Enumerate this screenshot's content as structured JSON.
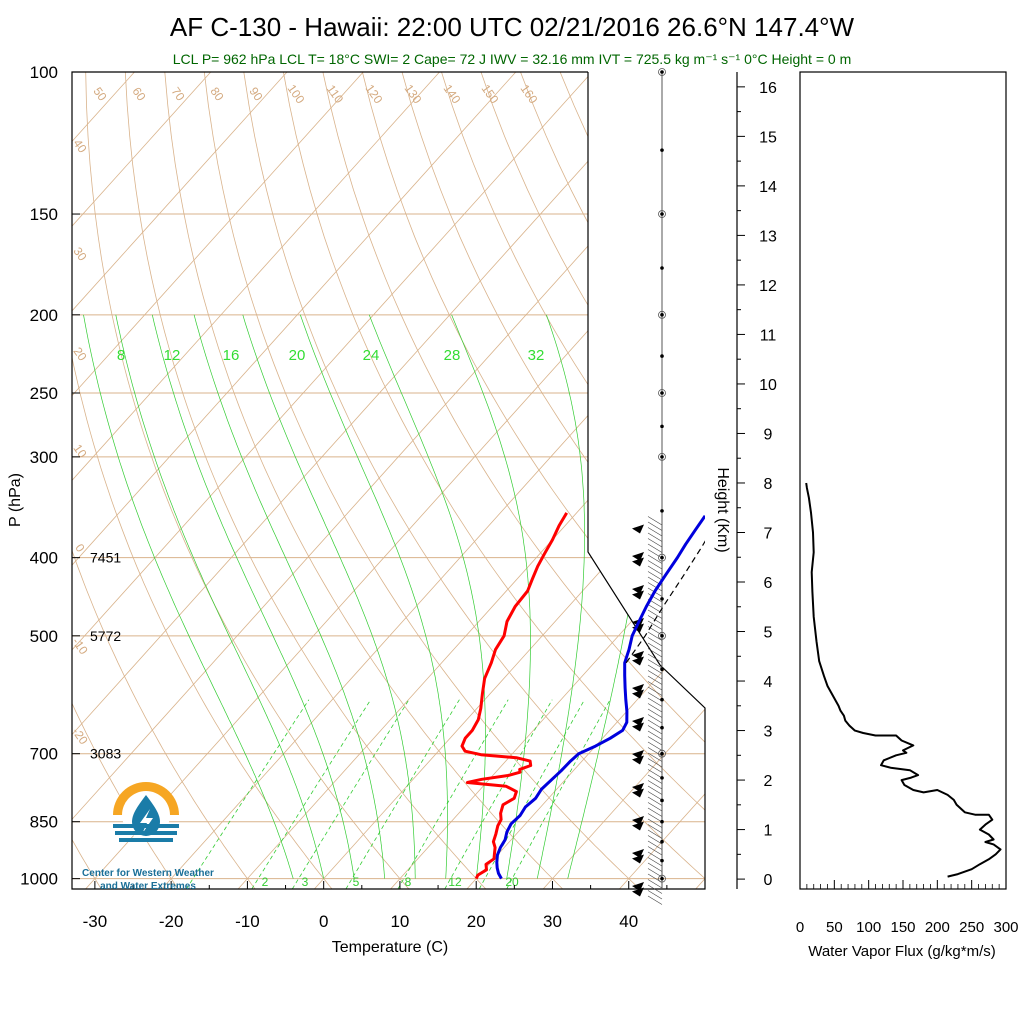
{
  "header": {
    "title": "AF C-130 - Hawaii: 22:00 UTC 02/21/2016  26.6°N 147.4°W",
    "subtitle": "LCL P= 962 hPa  LCL T= 18°C  SWI= 2  Cape= 72 J  IWV = 32.16 mm  IVT = 725.5 kg m⁻¹ s⁻¹  0°C Height = 0 m"
  },
  "colors": {
    "temperature": "#ff0000",
    "dewpoint": "#0000dd",
    "parcel": "#000000",
    "isotherm": "#d9b38c",
    "dry_adiabat": "#d9b38c",
    "moist_adiabat": "#33cc33",
    "mixing_ratio": "#33cc33",
    "subtitle_text": "#006600",
    "background": "#ffffff"
  },
  "logo": {
    "line1": "Center for Western Weather",
    "line2": "and Water Extremes",
    "colors": {
      "sun": "#f6a623",
      "water": "#1a7ca8"
    }
  },
  "chart_data": [
    {
      "type": "line",
      "name": "skew-t",
      "xlabel": "Temperature (C)",
      "ylabel": "P (hPa)",
      "y_scale": "log",
      "xlim": [
        -33,
        50
      ],
      "ylim": [
        1030,
        100
      ],
      "xticks": [
        -30,
        -20,
        -10,
        0,
        10,
        20,
        30,
        40
      ],
      "yticks": [
        100,
        150,
        200,
        250,
        300,
        400,
        500,
        700,
        850,
        1000
      ],
      "height_labels": [
        {
          "p": 400,
          "text": "7451"
        },
        {
          "p": 500,
          "text": "5772"
        },
        {
          "p": 700,
          "text": "3083"
        }
      ],
      "mixing_ratio_labels": [
        "2",
        "3",
        "5",
        "8",
        "12",
        "20"
      ],
      "moist_adiabat_labels": [
        "8",
        "12",
        "16",
        "20",
        "24",
        "28",
        "32"
      ],
      "isotherm_labels": [
        "50",
        "60",
        "70",
        "80",
        "90",
        "100",
        "110",
        "120",
        "130",
        "140",
        "150",
        "160"
      ],
      "dry_adiabat_labels_left": [
        "40",
        "30",
        "20",
        "10",
        "0",
        "-10",
        "-20"
      ],
      "dry_adiabat_labels_right": [
        "30",
        "20",
        "10",
        "0",
        "-10",
        "-20",
        "-30"
      ],
      "grid": true,
      "series": [
        {
          "key": "temperature",
          "points": [
            [
              1000,
              20
            ],
            [
              990,
              19.8
            ],
            [
              975,
              20.3
            ],
            [
              960,
              19.6
            ],
            [
              945,
              20.0
            ],
            [
              930,
              19.4
            ],
            [
              915,
              18.8
            ],
            [
              900,
              17.9
            ],
            [
              880,
              17.3
            ],
            [
              860,
              16.6
            ],
            [
              845,
              16.3
            ],
            [
              830,
              15.5
            ],
            [
              810,
              14.8
            ],
            [
              795,
              15.5
            ],
            [
              780,
              15.0
            ],
            [
              768,
              13.0
            ],
            [
              760,
              7.5
            ],
            [
              753,
              9.0
            ],
            [
              745,
              12.0
            ],
            [
              738,
              13.2
            ],
            [
              732,
              12.8
            ],
            [
              724,
              13.8
            ],
            [
              715,
              13.2
            ],
            [
              708,
              11.0
            ],
            [
              702,
              6.0
            ],
            [
              695,
              3.5
            ],
            [
              685,
              2.5
            ],
            [
              670,
              2.0
            ],
            [
              655,
              2.0
            ],
            [
              635,
              1.5
            ],
            [
              615,
              0.5
            ],
            [
              590,
              -1.0
            ],
            [
              565,
              -2.5
            ],
            [
              540,
              -3.5
            ],
            [
              520,
              -4.5
            ],
            [
              500,
              -5.0
            ],
            [
              480,
              -6.3
            ],
            [
              460,
              -7.0
            ],
            [
              440,
              -7.2
            ],
            [
              425,
              -8.0
            ],
            [
              410,
              -8.8
            ],
            [
              395,
              -9.4
            ],
            [
              380,
              -10.0
            ],
            [
              365,
              -10.8
            ],
            [
              352,
              -11.3
            ]
          ]
        },
        {
          "key": "dewpoint",
          "points": [
            [
              1000,
              23.3
            ],
            [
              985,
              22.3
            ],
            [
              970,
              21.5
            ],
            [
              955,
              20.8
            ],
            [
              935,
              20.0
            ],
            [
              915,
              19.5
            ],
            [
              895,
              19.2
            ],
            [
              875,
              18.5
            ],
            [
              855,
              18.1
            ],
            [
              835,
              18.3
            ],
            [
              815,
              18.0
            ],
            [
              795,
              18.3
            ],
            [
              775,
              18.0
            ],
            [
              755,
              18.2
            ],
            [
              735,
              18.4
            ],
            [
              715,
              18.5
            ],
            [
              700,
              18.7
            ],
            [
              685,
              20.0
            ],
            [
              670,
              21.0
            ],
            [
              655,
              21.7
            ],
            [
              640,
              21.3
            ],
            [
              620,
              20.0
            ],
            [
              600,
              18.5
            ],
            [
              580,
              17.0
            ],
            [
              560,
              15.5
            ],
            [
              540,
              14.0
            ],
            [
              520,
              13.0
            ],
            [
              500,
              11.8
            ],
            [
              480,
              11.0
            ],
            [
              460,
              10.2
            ],
            [
              440,
              9.5
            ],
            [
              420,
              9.0
            ],
            [
              400,
              8.5
            ],
            [
              385,
              8.0
            ],
            [
              370,
              7.6
            ],
            [
              355,
              7.2
            ]
          ]
        },
        {
          "key": "parcel",
          "points": [
            [
              540,
              14.2
            ],
            [
              500,
              13.5
            ],
            [
              460,
              12.4
            ],
            [
              420,
              11.4
            ],
            [
              390,
              10.5
            ],
            [
              360,
              9.4
            ]
          ]
        }
      ]
    },
    {
      "type": "line",
      "name": "height-axis",
      "ylabel": "Height (Km)",
      "ylim": [
        -0.2,
        16.3
      ],
      "yticks": [
        0,
        1,
        2,
        3,
        4,
        5,
        6,
        7,
        8,
        9,
        10,
        11,
        12,
        13,
        14,
        15,
        16
      ]
    },
    {
      "type": "line",
      "name": "water-vapor-flux",
      "xlabel": "Water Vapor Flux (g/kg*m/s)",
      "xlim": [
        0,
        300
      ],
      "ylim": [
        -0.2,
        16.3
      ],
      "xticks": [
        0,
        50,
        100,
        150,
        200,
        250,
        300
      ],
      "series": [
        {
          "key": "flux",
          "points": [
            [
              215,
              0.05
            ],
            [
              230,
              0.1
            ],
            [
              250,
              0.2
            ],
            [
              262,
              0.3
            ],
            [
              275,
              0.4
            ],
            [
              285,
              0.5
            ],
            [
              292,
              0.6
            ],
            [
              282,
              0.7
            ],
            [
              270,
              0.75
            ],
            [
              282,
              0.8
            ],
            [
              275,
              0.9
            ],
            [
              262,
              1.0
            ],
            [
              270,
              1.1
            ],
            [
              280,
              1.2
            ],
            [
              275,
              1.3
            ],
            [
              255,
              1.3
            ],
            [
              240,
              1.35
            ],
            [
              228,
              1.5
            ],
            [
              224,
              1.6
            ],
            [
              215,
              1.7
            ],
            [
              200,
              1.8
            ],
            [
              180,
              1.75
            ],
            [
              165,
              1.8
            ],
            [
              152,
              1.9
            ],
            [
              148,
              2.0
            ],
            [
              162,
              2.05
            ],
            [
              172,
              2.1
            ],
            [
              160,
              2.2
            ],
            [
              132,
              2.25
            ],
            [
              118,
              2.3
            ],
            [
              122,
              2.4
            ],
            [
              140,
              2.5
            ],
            [
              155,
              2.55
            ],
            [
              150,
              2.6
            ],
            [
              165,
              2.7
            ],
            [
              148,
              2.8
            ],
            [
              140,
              2.9
            ],
            [
              110,
              2.9
            ],
            [
              92,
              2.95
            ],
            [
              80,
              3.0
            ],
            [
              72,
              3.1
            ],
            [
              66,
              3.2
            ],
            [
              64,
              3.3
            ],
            [
              59,
              3.4
            ],
            [
              56,
              3.5
            ],
            [
              52,
              3.6
            ],
            [
              48,
              3.7
            ],
            [
              40,
              3.9
            ],
            [
              35,
              4.1
            ],
            [
              28,
              4.4
            ],
            [
              24,
              4.8
            ],
            [
              20,
              5.3
            ],
            [
              18,
              5.8
            ],
            [
              17,
              6.2
            ],
            [
              20,
              6.6
            ],
            [
              19,
              7.0
            ],
            [
              16,
              7.4
            ],
            [
              13,
              7.7
            ],
            [
              10,
              7.9
            ],
            [
              9,
              8.0
            ]
          ]
        }
      ]
    }
  ]
}
